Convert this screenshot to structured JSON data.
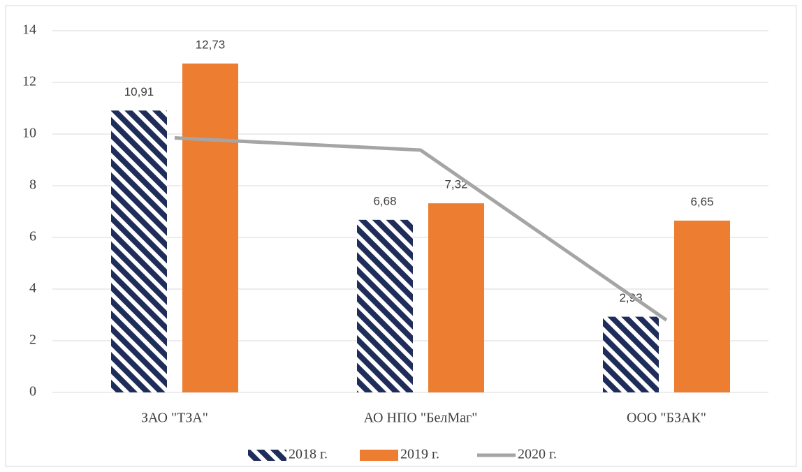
{
  "chart_data": {
    "type": "bar",
    "categories": [
      "ЗАО \"ТЗА\"",
      "АО НПО \"БелМаг\"",
      "ООО \"БЗАК\""
    ],
    "series": [
      {
        "name": "2018 г.",
        "color": "#1f2d5a",
        "type": "bar",
        "pattern": "hatch",
        "values": [
          10.91,
          6.68,
          2.93
        ],
        "value_labels": [
          "10,91",
          "6,68",
          "2,93"
        ]
      },
      {
        "name": "2019 г.",
        "color": "#ed7d31",
        "type": "bar",
        "values": [
          12.73,
          7.32,
          6.65
        ],
        "value_labels": [
          "12,73",
          "7,32",
          "6,65"
        ]
      },
      {
        "name": "2020 г.",
        "color": "#a5a5a5",
        "type": "line",
        "values": [
          9.85,
          9.38,
          2.8
        ]
      }
    ],
    "ylim": [
      0,
      14
    ],
    "yticks": [
      0,
      2,
      4,
      6,
      8,
      10,
      12,
      14
    ],
    "grid": true,
    "legend": "bottom"
  }
}
